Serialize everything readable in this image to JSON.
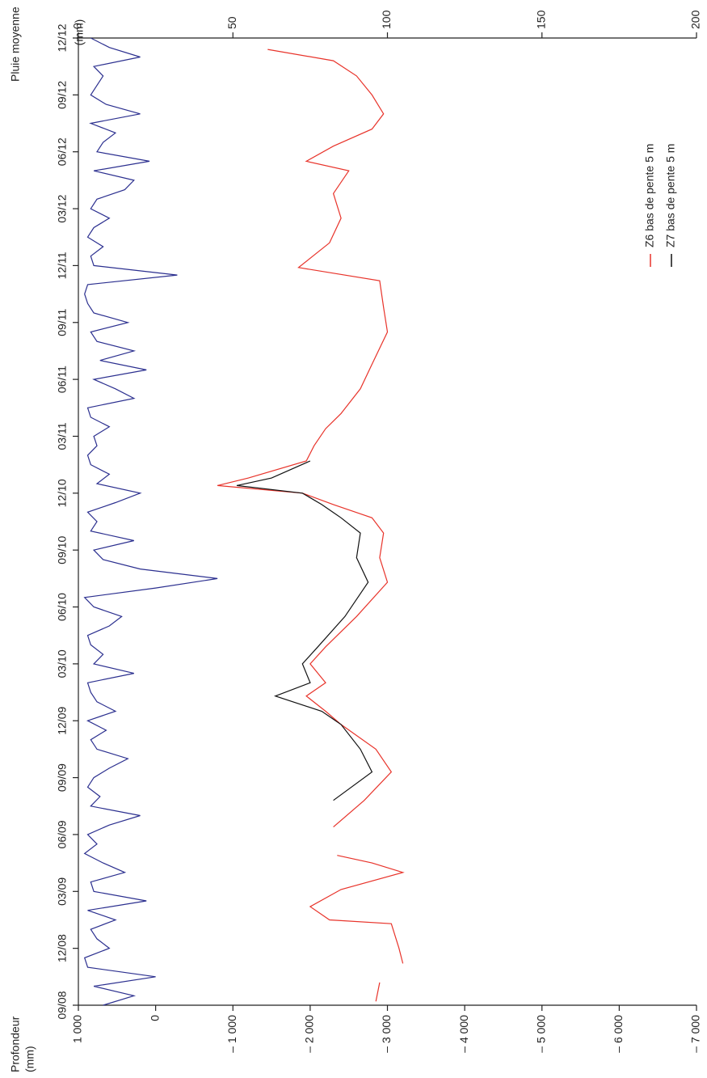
{
  "chart_data": {
    "type": "line",
    "y_label": [
      "Profondeur",
      "(mm)"
    ],
    "y2_label": [
      "Pluie moyenne",
      "(mm)"
    ],
    "xlim": [
      0,
      51
    ],
    "xticks": [
      {
        "value": 0,
        "label": "09/08"
      },
      {
        "value": 3,
        "label": "12/08"
      },
      {
        "value": 6,
        "label": "03/09"
      },
      {
        "value": 9,
        "label": "06/09"
      },
      {
        "value": 12,
        "label": "09/09"
      },
      {
        "value": 15,
        "label": "12/09"
      },
      {
        "value": 18,
        "label": "03/10"
      },
      {
        "value": 21,
        "label": "06/10"
      },
      {
        "value": 24,
        "label": "09/10"
      },
      {
        "value": 27,
        "label": "12/10"
      },
      {
        "value": 30,
        "label": "03/11"
      },
      {
        "value": 33,
        "label": "06/11"
      },
      {
        "value": 36,
        "label": "09/11"
      },
      {
        "value": 39,
        "label": "12/11"
      },
      {
        "value": 42,
        "label": "03/12"
      },
      {
        "value": 45,
        "label": "06/12"
      },
      {
        "value": 48,
        "label": "09/12"
      },
      {
        "value": 51,
        "label": "12/12"
      }
    ],
    "ylim": [
      1000,
      -7000
    ],
    "yticks": [
      {
        "value": 1000,
        "label": "1 000"
      },
      0,
      {
        "value": -1000,
        "label": "– 1 000"
      },
      {
        "value": -2000,
        "label": "– 2 000"
      },
      {
        "value": -3000,
        "label": "– 3 000"
      },
      {
        "value": -4000,
        "label": "– 4 000"
      },
      {
        "value": -5000,
        "label": "– 5 000"
      },
      {
        "value": -6000,
        "label": "– 6 000"
      },
      {
        "value": -7000,
        "label": "– 7 000"
      }
    ],
    "y2lim": [
      0,
      200
    ],
    "y2ticks": [
      0,
      50,
      100,
      150,
      200
    ],
    "x": [
      0.2,
      1.2,
      1.7,
      2.2,
      3.0,
      4.3,
      4.5,
      5.2,
      6.1,
      7.0,
      7.5,
      7.9,
      8.6,
      9.4,
      10.8,
      12.3,
      13.5,
      14.8,
      15.5,
      16.3,
      17.0,
      18.0,
      18.9,
      20.5,
      22.3,
      23.6,
      24.9,
      25.7,
      26.4,
      27.0,
      27.4,
      27.8,
      28.7,
      29.5,
      30.4,
      31.2,
      32.5,
      33.8,
      35.5,
      36.8,
      38.2,
      38.9,
      40.2,
      41.5,
      42.8,
      44.0,
      44.5,
      45.3,
      46.2,
      47.0,
      48.0,
      49.0,
      49.8,
      50.4
    ],
    "series": [
      {
        "name": "Z6 bas de pente 5 m",
        "color": "#e8332a",
        "values": [
          -2850,
          -2900,
          null,
          -3200,
          -3150,
          -3050,
          -2250,
          -2000,
          -2400,
          -3200,
          -2800,
          -2350,
          null,
          -2300,
          -2700,
          -3050,
          -2850,
          -2400,
          -2200,
          -1950,
          -2200,
          -2000,
          -2200,
          -2600,
          -3000,
          -2900,
          -2950,
          -2800,
          -2300,
          -1900,
          -800,
          -1200,
          -1950,
          -2050,
          -2200,
          -2400,
          -2650,
          -2800,
          -3000,
          -2950,
          -2900,
          -1850,
          -2250,
          -2400,
          -2300,
          -2500,
          -1950,
          -2300,
          -2800,
          -2950,
          -2800,
          -2600,
          -2300,
          -1450
        ]
      },
      {
        "name": "Z7 bas de pente 5 m",
        "color": "#111111",
        "values": [
          null,
          null,
          null,
          null,
          null,
          null,
          null,
          null,
          null,
          null,
          null,
          null,
          null,
          null,
          -2300,
          -2800,
          -2650,
          -2400,
          -2150,
          -1550,
          -2000,
          -1900,
          -2100,
          -2450,
          -2750,
          -2600,
          -2650,
          -2400,
          -2150,
          -1900,
          -1050,
          -1500,
          -2000,
          null,
          null,
          null,
          null,
          null,
          null,
          null,
          null,
          null,
          null,
          null,
          null,
          null,
          null,
          null,
          null,
          null,
          null,
          null,
          null,
          null
        ]
      },
      {
        "axis": "y2",
        "color": "#2b2f8f",
        "x": [
          0,
          0.5,
          1,
          1.5,
          2,
          2.5,
          3,
          3.5,
          4,
          4.5,
          5,
          5.5,
          6,
          6.5,
          7,
          7.5,
          8,
          8.5,
          9,
          9.5,
          10,
          10.5,
          11,
          11.5,
          12,
          12.5,
          13,
          13.5,
          14,
          14.5,
          15,
          15.5,
          16,
          16.5,
          17,
          17.5,
          18,
          18.5,
          19,
          19.5,
          20,
          20.5,
          21,
          21.5,
          22,
          22.5,
          23,
          23.5,
          24,
          24.5,
          25,
          25.5,
          26,
          26.5,
          27,
          27.5,
          28,
          28.5,
          29,
          29.5,
          30,
          30.5,
          31,
          31.5,
          32,
          32.5,
          33,
          33.5,
          34,
          34.5,
          35,
          35.5,
          36,
          36.5,
          37,
          37.5,
          38,
          38.5,
          39,
          39.5,
          40,
          40.5,
          41,
          41.5,
          42,
          42.5,
          43,
          43.5,
          44,
          44.5,
          45,
          45.5,
          46,
          46.5,
          47,
          47.5,
          48,
          48.5,
          49,
          49.5,
          50,
          50.5,
          51
        ],
        "values": [
          8,
          18,
          5,
          25,
          3,
          2,
          10,
          6,
          4,
          12,
          3,
          22,
          5,
          4,
          15,
          8,
          2,
          6,
          3,
          10,
          20,
          4,
          7,
          3,
          5,
          10,
          16,
          6,
          4,
          9,
          3,
          12,
          6,
          4,
          3,
          18,
          5,
          8,
          4,
          3,
          10,
          14,
          5,
          2,
          25,
          45,
          20,
          8,
          5,
          18,
          4,
          6,
          3,
          12,
          20,
          6,
          10,
          4,
          3,
          6,
          5,
          10,
          4,
          3,
          18,
          12,
          5,
          22,
          7,
          18,
          6,
          4,
          16,
          5,
          3,
          2,
          3,
          32,
          5,
          4,
          8,
          3,
          5,
          10,
          4,
          6,
          15,
          18,
          5,
          23,
          6,
          8,
          12,
          4,
          20,
          9,
          4,
          6,
          8,
          5,
          20,
          10,
          4
        ]
      }
    ]
  }
}
